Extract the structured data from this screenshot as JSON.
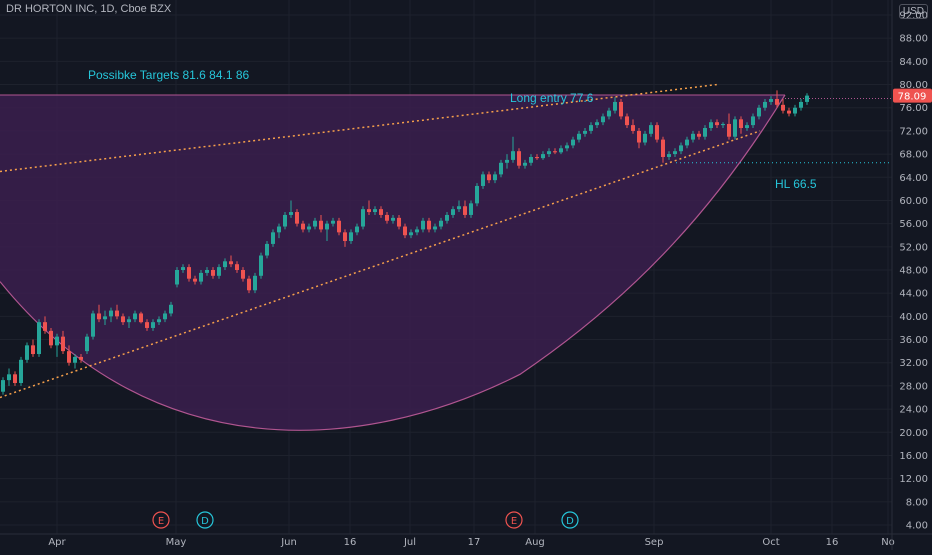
{
  "header": {
    "symbol_title": "DR HORTON INC, 1D, Cboe BZX",
    "currency": "USD"
  },
  "annotations": {
    "targets": "Possibke Targets  81.6   84.1   86",
    "long_entry": "Long entry   77.6",
    "hl": "HL  66.5"
  },
  "events": [
    "E",
    "D",
    "E",
    "D"
  ],
  "colors": {
    "background": "#131722",
    "up": "#26a69a",
    "down": "#ef5350",
    "cup_fill": "#3b1f4d",
    "cup_stroke": "#b05590",
    "trendline": "#f7a04b",
    "annotation": "#26c6da",
    "price_tag": "#ef5350"
  },
  "chart_data": {
    "type": "candlestick",
    "title": "DR HORTON INC, 1D, Cboe BZX",
    "ylim": [
      4,
      92
    ],
    "y_ticks": [
      "92.00",
      "88.00",
      "84.00",
      "80.00",
      "76.00",
      "72.00",
      "68.00",
      "64.00",
      "60.00",
      "56.00",
      "52.00",
      "48.00",
      "44.00",
      "40.00",
      "36.00",
      "32.00",
      "28.00",
      "24.00",
      "20.00",
      "16.00",
      "12.00",
      "8.00",
      "4.00"
    ],
    "x_ticks": [
      "Apr",
      "May",
      "Jun",
      "16",
      "Jul",
      "17",
      "Aug",
      "Sep",
      "Oct",
      "16",
      "No"
    ],
    "last_price": "78.09",
    "levels": {
      "long_entry": 77.6,
      "higher_low": 66.5,
      "targets": [
        81.6,
        84.1,
        86
      ]
    },
    "series": [
      {
        "name": "",
        "values": [
          [
            0,
            27,
            29.5,
            26.5,
            29
          ],
          [
            1,
            29,
            31,
            28,
            30
          ],
          [
            2,
            30,
            30.5,
            28,
            28.5
          ],
          [
            3,
            28.5,
            33,
            28,
            32.5
          ],
          [
            4,
            32.5,
            35.5,
            32,
            35
          ],
          [
            5,
            35,
            36,
            33,
            33.5
          ],
          [
            6,
            33.5,
            39.5,
            33,
            39
          ],
          [
            7,
            39,
            40,
            37,
            37.5
          ],
          [
            8,
            37.5,
            38,
            34.5,
            35
          ],
          [
            9,
            35,
            37,
            33,
            36.5
          ],
          [
            10,
            36.5,
            37.5,
            33.5,
            34
          ],
          [
            11,
            34,
            35,
            31.5,
            32
          ],
          [
            12,
            32,
            33.5,
            31,
            33
          ],
          [
            13,
            33,
            33.5,
            32,
            32.5
          ],
          [
            14,
            34,
            37,
            33.5,
            36.5
          ],
          [
            15,
            36.5,
            41,
            36,
            40.5
          ],
          [
            16,
            40.5,
            42,
            39,
            39.5
          ],
          [
            17,
            39.5,
            41,
            38.5,
            40
          ],
          [
            18,
            40,
            41.5,
            39,
            41
          ],
          [
            19,
            41,
            42,
            39.5,
            40
          ],
          [
            20,
            40,
            40.5,
            38.5,
            39
          ],
          [
            21,
            39,
            40,
            38,
            39.5
          ],
          [
            22,
            39.5,
            41,
            39,
            40.5
          ],
          [
            23,
            40.5,
            40.8,
            38.8,
            39
          ],
          [
            24,
            39,
            39.5,
            37.5,
            38
          ],
          [
            25,
            38,
            39.5,
            37.5,
            39
          ],
          [
            26,
            39,
            40,
            38.5,
            39.5
          ],
          [
            27,
            39.5,
            41,
            39,
            40.5
          ],
          [
            28,
            40.5,
            42.5,
            40,
            42
          ],
          [
            29,
            45.5,
            48.5,
            45,
            48
          ],
          [
            30,
            48,
            49,
            47.5,
            48.5
          ],
          [
            31,
            48.5,
            49,
            46,
            46.5
          ],
          [
            32,
            46.5,
            47,
            45.5,
            46
          ],
          [
            33,
            46,
            48,
            45.5,
            47.5
          ],
          [
            34,
            47.5,
            48.5,
            47,
            48
          ],
          [
            35,
            48,
            48.5,
            46.5,
            47
          ],
          [
            36,
            47,
            49,
            46.5,
            48.5
          ],
          [
            37,
            48.5,
            50,
            48,
            49.5
          ],
          [
            38,
            49.5,
            50.5,
            48.5,
            49
          ],
          [
            39,
            49,
            49.5,
            47.5,
            48
          ],
          [
            40,
            48,
            48.5,
            46,
            46.5
          ],
          [
            41,
            46.5,
            47,
            44,
            44.5
          ],
          [
            42,
            44.5,
            47.5,
            44,
            47
          ],
          [
            43,
            47,
            51,
            46.5,
            50.5
          ],
          [
            44,
            50.5,
            53,
            50,
            52.5
          ],
          [
            45,
            52.5,
            55,
            52,
            54.5
          ],
          [
            46,
            54.5,
            56,
            53.5,
            55.5
          ],
          [
            47,
            55.5,
            58,
            55,
            57.5
          ],
          [
            48,
            57.5,
            60,
            57,
            58
          ],
          [
            49,
            58,
            58.5,
            55.5,
            56
          ],
          [
            50,
            56,
            56.5,
            54.5,
            55
          ],
          [
            51,
            55,
            56,
            54.5,
            55.5
          ],
          [
            52,
            55.5,
            57,
            55,
            56.5
          ],
          [
            53,
            56.5,
            57.5,
            54.5,
            55
          ],
          [
            54,
            55,
            56.5,
            53,
            56
          ],
          [
            55,
            56,
            57,
            55.5,
            56.5
          ],
          [
            56,
            56.5,
            57,
            54,
            54.5
          ],
          [
            57,
            54.5,
            55,
            52,
            53
          ],
          [
            58,
            53,
            55,
            52.5,
            54.5
          ],
          [
            59,
            54.5,
            56,
            54,
            55.5
          ],
          [
            60,
            55.5,
            59,
            55,
            58.5
          ],
          [
            61,
            58.5,
            60,
            57.5,
            58
          ],
          [
            62,
            58,
            59,
            57.5,
            58.5
          ],
          [
            63,
            58.5,
            59,
            57,
            57.5
          ],
          [
            64,
            57.5,
            58,
            56,
            56.5
          ],
          [
            65,
            56.5,
            57.5,
            56,
            57
          ],
          [
            66,
            57,
            57.5,
            55,
            55.5
          ],
          [
            67,
            55.5,
            56,
            53.5,
            54
          ],
          [
            68,
            54,
            55,
            53.5,
            54.5
          ],
          [
            69,
            54.5,
            55.5,
            54,
            55
          ],
          [
            70,
            55,
            57,
            54.5,
            56.5
          ],
          [
            71,
            56.5,
            57,
            54.5,
            55
          ],
          [
            72,
            55,
            56,
            54.5,
            55.5
          ],
          [
            73,
            55.5,
            57,
            55,
            56.5
          ],
          [
            74,
            56.5,
            58,
            56,
            57.5
          ],
          [
            75,
            57.5,
            59,
            57,
            58.5
          ],
          [
            76,
            58.5,
            60,
            58,
            59
          ],
          [
            77,
            59,
            60,
            57,
            57.5
          ],
          [
            78,
            57.5,
            60,
            57,
            59.5
          ],
          [
            79,
            59.5,
            63,
            59,
            62.5
          ],
          [
            80,
            62.5,
            65,
            62,
            64.5
          ],
          [
            81,
            64.5,
            65,
            63,
            63.5
          ],
          [
            82,
            63.5,
            65,
            63,
            64.5
          ],
          [
            83,
            64.5,
            67,
            64,
            66.5
          ],
          [
            84,
            66.5,
            68,
            65.5,
            67
          ],
          [
            85,
            67,
            71,
            66.5,
            68.5
          ],
          [
            86,
            68.5,
            69,
            65.5,
            66
          ],
          [
            87,
            66,
            67,
            65.5,
            66.5
          ],
          [
            88,
            66.5,
            68,
            66,
            67.5
          ],
          [
            89,
            67.5,
            68,
            67,
            67.3
          ],
          [
            90,
            67.3,
            68.5,
            67,
            68
          ],
          [
            91,
            68,
            69,
            67.5,
            68.5
          ],
          [
            92,
            68.5,
            69,
            68,
            68.3
          ],
          [
            93,
            68.3,
            69.5,
            68,
            69
          ],
          [
            94,
            69,
            70,
            68.5,
            69.5
          ],
          [
            95,
            69.5,
            71,
            69,
            70.5
          ],
          [
            96,
            70.5,
            72,
            70,
            71.5
          ],
          [
            97,
            71.5,
            72.5,
            71,
            72
          ],
          [
            98,
            72,
            73.5,
            71.5,
            73
          ],
          [
            99,
            73,
            74,
            72.5,
            73.5
          ],
          [
            100,
            73.5,
            75,
            73,
            74.5
          ],
          [
            101,
            74.5,
            76,
            74,
            75.5
          ],
          [
            102,
            75.5,
            77.8,
            75,
            77
          ],
          [
            103,
            77,
            77.5,
            74,
            74.5
          ],
          [
            104,
            74.5,
            75,
            72.5,
            73
          ],
          [
            105,
            73,
            74,
            71.5,
            72
          ],
          [
            106,
            72,
            72.5,
            69,
            70
          ],
          [
            107,
            70,
            72,
            69.5,
            71.5
          ],
          [
            108,
            71.5,
            73.5,
            71,
            73
          ],
          [
            109,
            73,
            73.5,
            70,
            70.5
          ],
          [
            110,
            70.5,
            71,
            66.5,
            67.5
          ],
          [
            111,
            67.5,
            68.5,
            67,
            68
          ],
          [
            112,
            68,
            69,
            67.5,
            68.5
          ],
          [
            113,
            68.5,
            70,
            68,
            69.5
          ],
          [
            114,
            69.5,
            71,
            69,
            70.5
          ],
          [
            115,
            70.5,
            72,
            70,
            71.5
          ],
          [
            116,
            71.5,
            72,
            70.5,
            71
          ],
          [
            117,
            71,
            73,
            70.5,
            72.5
          ],
          [
            118,
            72.5,
            74,
            72,
            73.5
          ],
          [
            119,
            73.5,
            74,
            72.5,
            73
          ],
          [
            120,
            73,
            73.5,
            72.5,
            73.2
          ],
          [
            121,
            73.2,
            75,
            70.5,
            71
          ],
          [
            122,
            71,
            74.5,
            70.5,
            74
          ],
          [
            123,
            74,
            74.5,
            71.5,
            72.5
          ],
          [
            124,
            72.5,
            73.5,
            72,
            73
          ],
          [
            125,
            73,
            75,
            72.5,
            74.5
          ],
          [
            126,
            74.5,
            76.5,
            74,
            76
          ],
          [
            127,
            76,
            77.5,
            75.5,
            77
          ],
          [
            128,
            77,
            78,
            76.5,
            77.5
          ],
          [
            129,
            77.5,
            79,
            76,
            76.5
          ],
          [
            130,
            76.5,
            77.5,
            75,
            75.5
          ],
          [
            131,
            75.5,
            76,
            74.5,
            75
          ],
          [
            132,
            75,
            76.5,
            74.5,
            76
          ],
          [
            133,
            76,
            77.5,
            75.5,
            77
          ],
          [
            134,
            77,
            78.5,
            76.5,
            78.09
          ]
        ]
      }
    ],
    "overlays": {
      "cup_arc": "rounded-bottom curve from about 46 (early Mar) down to about 19.5 (early Jun) and back up to about 78 (early Oct)",
      "upper_trendline": "rising dotted line from about 65 to about 80",
      "lower_trendline": "rising dotted line from about 26 to about 72",
      "long_entry_line": 77.6,
      "hl_line": 66.5
    }
  }
}
